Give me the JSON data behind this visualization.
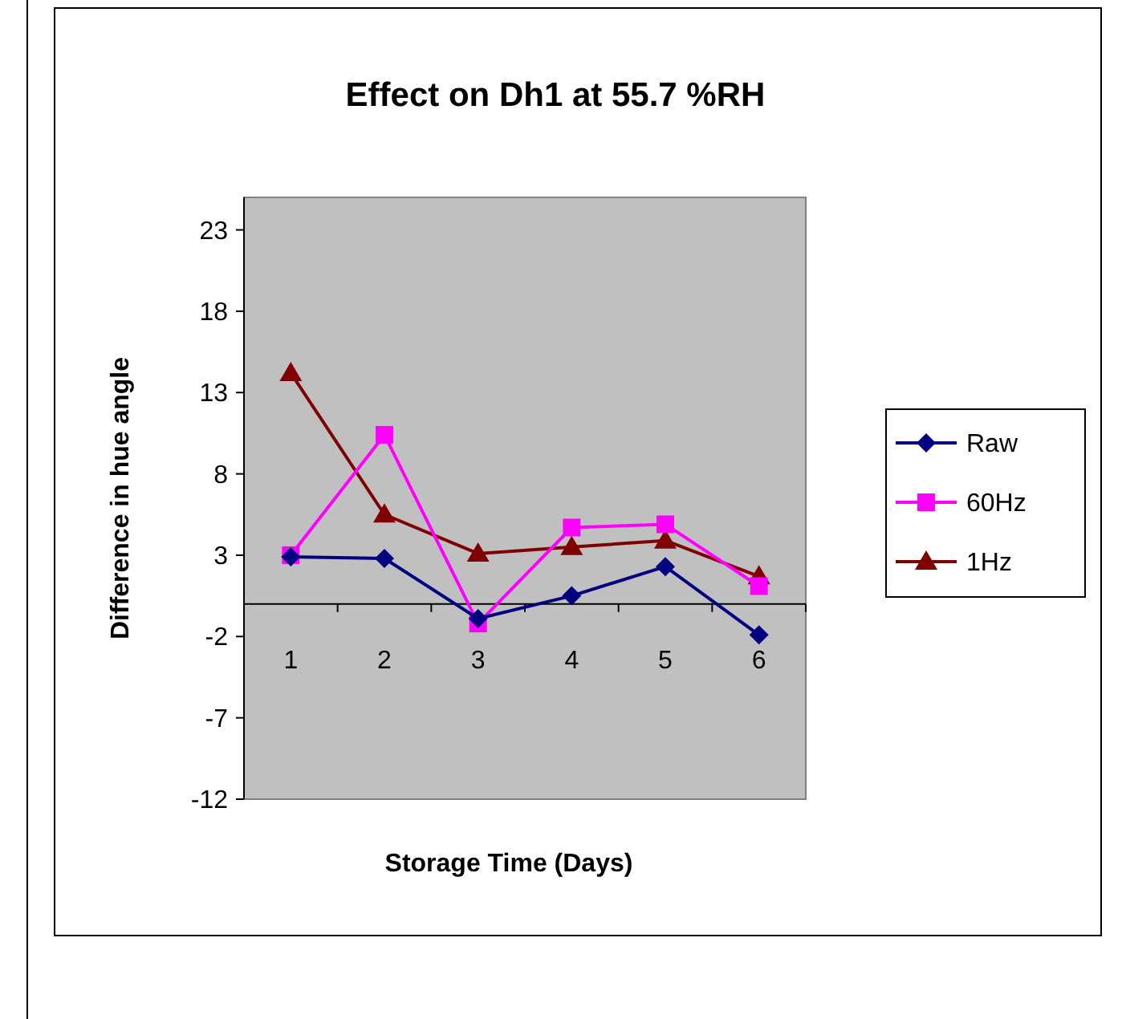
{
  "chart_data": {
    "type": "line",
    "title": "Effect on Dh1 at 55.7 %RH",
    "xlabel": "Storage Time (Days)",
    "ylabel": "Difference in hue angle",
    "categories": [
      "1",
      "2",
      "3",
      "4",
      "5",
      "6"
    ],
    "series": [
      {
        "name": "Raw",
        "color": "#000080",
        "marker": "diamond",
        "values": [
          2.9,
          2.8,
          -0.9,
          0.5,
          2.3,
          -1.9
        ]
      },
      {
        "name": "60Hz",
        "color": "#ff00ff",
        "marker": "square",
        "values": [
          3.0,
          10.4,
          -1.2,
          4.7,
          4.9,
          1.1
        ]
      },
      {
        "name": "1Hz",
        "color": "#800000",
        "marker": "triangle",
        "values": [
          14.2,
          5.5,
          3.1,
          3.5,
          3.9,
          1.7
        ]
      }
    ],
    "ylim": [
      -12,
      25
    ],
    "yticks": [
      -12,
      -7,
      -2,
      3,
      8,
      13,
      18,
      23
    ],
    "grid": false,
    "legend": "right"
  }
}
